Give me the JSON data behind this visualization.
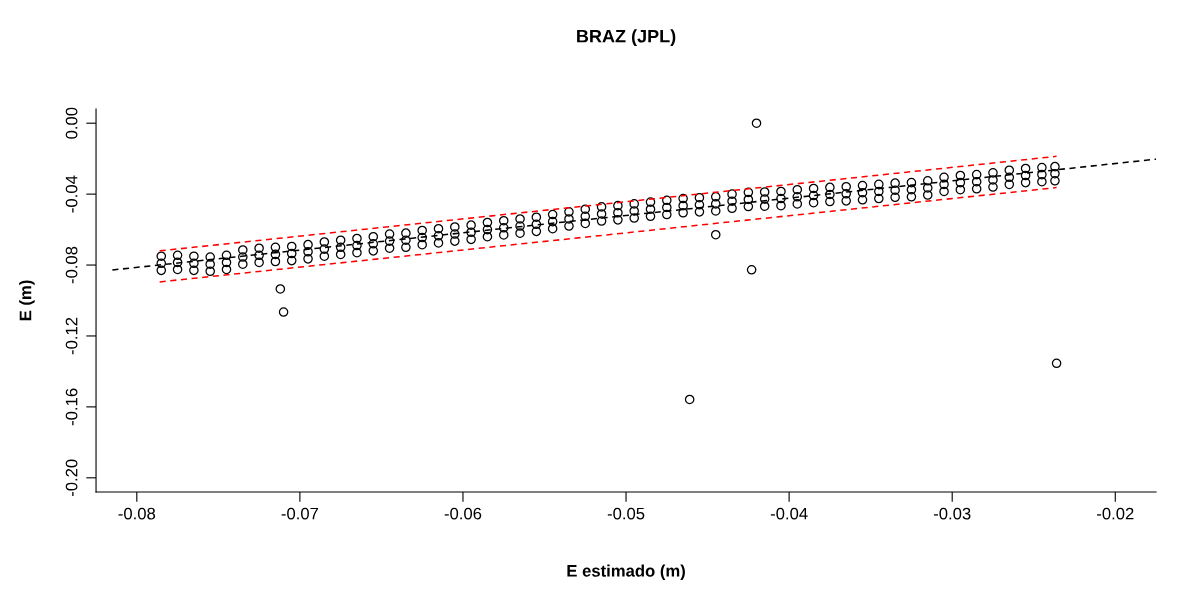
{
  "chart_data": {
    "type": "scatter",
    "title": "BRAZ (JPL)",
    "xlabel": "E estimado (m)",
    "ylabel": "E (m)",
    "xlim": [
      -0.0825,
      -0.0175
    ],
    "ylim": [
      -0.208,
      0.008
    ],
    "xticks": [
      -0.08,
      -0.07,
      -0.06,
      -0.05,
      -0.04,
      -0.03,
      -0.02
    ],
    "yticks": [
      {
        "value": 0,
        "label": "0.00"
      },
      -0.04,
      -0.08,
      -0.12,
      -0.16,
      {
        "value": -0.2,
        "label": "-0.20"
      }
    ],
    "grid": false,
    "series": [
      {
        "color": "#000000",
        "marker": "circle",
        "x": [
          -0.0785,
          -0.0775,
          -0.0765,
          -0.0755,
          -0.0745,
          -0.0735,
          -0.0725,
          -0.0715,
          -0.0705,
          -0.0695,
          -0.0685,
          -0.0675,
          -0.0665,
          -0.0655,
          -0.0645,
          -0.0635,
          -0.0625,
          -0.0615,
          -0.0605,
          -0.0595,
          -0.0585,
          -0.0575,
          -0.0565,
          -0.0555,
          -0.0545,
          -0.0535,
          -0.0525,
          -0.0515,
          -0.0505,
          -0.0495,
          -0.0485,
          -0.0475,
          -0.0465,
          -0.0455,
          -0.0445,
          -0.0435,
          -0.0425,
          -0.0415,
          -0.0405,
          -0.0395,
          -0.0385,
          -0.0375,
          -0.0365,
          -0.0355,
          -0.0345,
          -0.0335,
          -0.0325,
          -0.0315,
          -0.0305,
          -0.0295,
          -0.0285,
          -0.0275,
          -0.0265,
          -0.0255,
          -0.0245,
          -0.0237,
          -0.0785,
          -0.0775,
          -0.0765,
          -0.0755,
          -0.0745,
          -0.0735,
          -0.0725,
          -0.0715,
          -0.0705,
          -0.0695,
          -0.0685,
          -0.0675,
          -0.0665,
          -0.0655,
          -0.0645,
          -0.0635,
          -0.0625,
          -0.0615,
          -0.0605,
          -0.0595,
          -0.0585,
          -0.0575,
          -0.0565,
          -0.0555,
          -0.0545,
          -0.0535,
          -0.0525,
          -0.0515,
          -0.0505,
          -0.0495,
          -0.0485,
          -0.0475,
          -0.0465,
          -0.0455,
          -0.0445,
          -0.0435,
          -0.0425,
          -0.0415,
          -0.0405,
          -0.0395,
          -0.0385,
          -0.0375,
          -0.0365,
          -0.0355,
          -0.0345,
          -0.0335,
          -0.0325,
          -0.0315,
          -0.0305,
          -0.0295,
          -0.0285,
          -0.0275,
          -0.0265,
          -0.0255,
          -0.0245,
          -0.0237,
          -0.0785,
          -0.0775,
          -0.0765,
          -0.0755,
          -0.0745,
          -0.0735,
          -0.0725,
          -0.0715,
          -0.0705,
          -0.0695,
          -0.0685,
          -0.0675,
          -0.0665,
          -0.0655,
          -0.0645,
          -0.0635,
          -0.0625,
          -0.0615,
          -0.0605,
          -0.0595,
          -0.0585,
          -0.0575,
          -0.0565,
          -0.0555,
          -0.0545,
          -0.0535,
          -0.0525,
          -0.0515,
          -0.0505,
          -0.0495,
          -0.0485,
          -0.0475,
          -0.0465,
          -0.0455,
          -0.0445,
          -0.0435,
          -0.0425,
          -0.0415,
          -0.0405,
          -0.0395,
          -0.0385,
          -0.0375,
          -0.0365,
          -0.0355,
          -0.0345,
          -0.0335,
          -0.0325,
          -0.0315,
          -0.0305,
          -0.0295,
          -0.0285,
          -0.0275,
          -0.0265,
          -0.0255,
          -0.0245,
          -0.0237,
          -0.0712,
          -0.071,
          -0.042,
          -0.0445,
          -0.0423,
          -0.0461,
          -0.0236
        ],
        "values": [
          -0.079,
          -0.0785,
          -0.079,
          -0.0795,
          -0.0785,
          -0.0755,
          -0.0745,
          -0.074,
          -0.0735,
          -0.0725,
          -0.071,
          -0.07,
          -0.069,
          -0.068,
          -0.0665,
          -0.066,
          -0.0645,
          -0.0635,
          -0.0625,
          -0.0615,
          -0.06,
          -0.059,
          -0.058,
          -0.057,
          -0.0555,
          -0.054,
          -0.0525,
          -0.0512,
          -0.0505,
          -0.0495,
          -0.0485,
          -0.0475,
          -0.0465,
          -0.046,
          -0.0455,
          -0.044,
          -0.043,
          -0.0428,
          -0.0425,
          -0.0415,
          -0.0408,
          -0.0402,
          -0.0398,
          -0.0392,
          -0.0385,
          -0.0378,
          -0.0375,
          -0.0365,
          -0.0345,
          -0.0335,
          -0.033,
          -0.032,
          -0.0305,
          -0.0295,
          -0.029,
          -0.0285,
          -0.075,
          -0.0745,
          -0.075,
          -0.0755,
          -0.0745,
          -0.0715,
          -0.0705,
          -0.07,
          -0.0695,
          -0.0685,
          -0.067,
          -0.066,
          -0.065,
          -0.064,
          -0.0625,
          -0.062,
          -0.0605,
          -0.0595,
          -0.0585,
          -0.0575,
          -0.056,
          -0.055,
          -0.054,
          -0.053,
          -0.0515,
          -0.05,
          -0.0485,
          -0.0472,
          -0.0465,
          -0.0455,
          -0.0445,
          -0.0435,
          -0.0425,
          -0.042,
          -0.0415,
          -0.04,
          -0.039,
          -0.0388,
          -0.0385,
          -0.0375,
          -0.0368,
          -0.0362,
          -0.0358,
          -0.0352,
          -0.0345,
          -0.0338,
          -0.0335,
          -0.0325,
          -0.0305,
          -0.0295,
          -0.029,
          -0.028,
          -0.0265,
          -0.0255,
          -0.025,
          -0.0245,
          -0.083,
          -0.0825,
          -0.083,
          -0.0835,
          -0.0825,
          -0.0795,
          -0.0785,
          -0.078,
          -0.0775,
          -0.0765,
          -0.075,
          -0.074,
          -0.073,
          -0.072,
          -0.0705,
          -0.07,
          -0.0685,
          -0.0675,
          -0.0665,
          -0.0655,
          -0.064,
          -0.063,
          -0.062,
          -0.061,
          -0.0595,
          -0.058,
          -0.0565,
          -0.0552,
          -0.0545,
          -0.0535,
          -0.0525,
          -0.0515,
          -0.0505,
          -0.05,
          -0.0495,
          -0.048,
          -0.047,
          -0.0468,
          -0.0465,
          -0.0455,
          -0.0448,
          -0.0442,
          -0.0438,
          -0.0432,
          -0.0425,
          -0.0418,
          -0.0415,
          -0.0405,
          -0.0385,
          -0.0375,
          -0.037,
          -0.036,
          -0.0345,
          -0.0335,
          -0.033,
          -0.0325,
          -0.0935,
          -0.1065,
          0.0,
          -0.0629,
          -0.0827,
          -0.1558,
          -0.1354
        ]
      },
      {
        "type": "line",
        "color": "#000000",
        "marker": "none",
        "line_style": "dashed",
        "x": [
          -0.0815,
          -0.0175
        ],
        "values": [
          -0.0828,
          -0.0203
        ]
      },
      {
        "type": "line",
        "color": "#ff0000",
        "marker": "none",
        "line_style": "dashed",
        "x": [
          -0.0786,
          -0.0236
        ],
        "values": [
          -0.072,
          -0.0187
        ]
      },
      {
        "type": "line",
        "color": "#ff0000",
        "marker": "none",
        "line_style": "dashed",
        "x": [
          -0.0786,
          -0.0236
        ],
        "values": [
          -0.0895,
          -0.0363
        ]
      }
    ]
  }
}
